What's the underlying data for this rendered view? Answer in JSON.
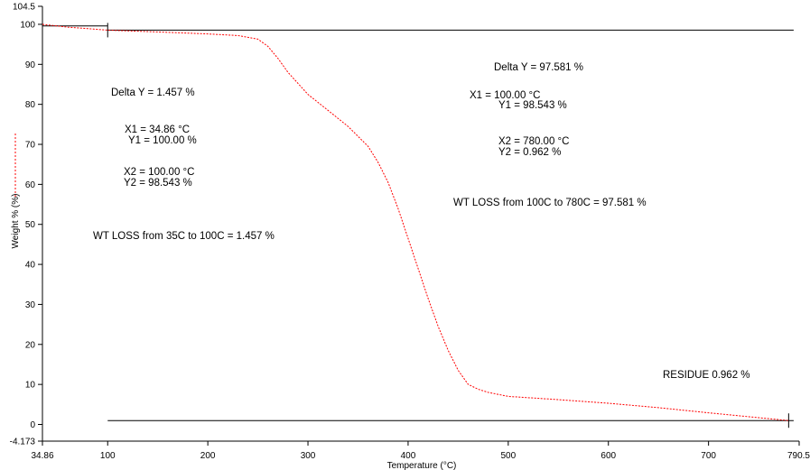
{
  "chart_data": {
    "type": "line",
    "title": "",
    "xlabel": "Temperature (°C)",
    "ylabel": "Weight % (%)",
    "xlim": [
      34.86,
      790.5
    ],
    "ylim": [
      -4.173,
      104.5
    ],
    "x_ticks": [
      "34.86",
      "100",
      "200",
      "300",
      "400",
      "500",
      "600",
      "700",
      "790.5"
    ],
    "y_ticks": [
      "104.5",
      "100",
      "90",
      "80",
      "70",
      "60",
      "50",
      "40",
      "30",
      "20",
      "10",
      "0",
      "-4.173"
    ],
    "grid": false,
    "legend": "left",
    "series": [
      {
        "color": "#ff0000",
        "dash": "dashed",
        "x": [
          34.86,
          60,
          100,
          150,
          200,
          230,
          250,
          260,
          270,
          280,
          300,
          320,
          340,
          360,
          370,
          380,
          390,
          400,
          410,
          420,
          430,
          440,
          450,
          460,
          470,
          480,
          500,
          550,
          600,
          650,
          700,
          750,
          780
        ],
        "y": [
          100.0,
          99.3,
          98.543,
          98.1,
          97.6,
          97.2,
          96.3,
          94.5,
          91.5,
          88.0,
          82.5,
          78.5,
          74.5,
          69.5,
          65.5,
          60.5,
          54.0,
          46.5,
          39.0,
          31.5,
          24.5,
          18.5,
          13.5,
          10.0,
          8.8,
          8.0,
          7.0,
          6.2,
          5.3,
          4.2,
          2.9,
          1.7,
          0.962
        ]
      }
    ],
    "reference_lines": [
      {
        "x_from": 34.86,
        "x_to": 100,
        "y": 99.6
      },
      {
        "x_from": 100,
        "x_to": 785,
        "y": 98.543
      },
      {
        "x_from": 100,
        "x_to": 785,
        "y": 0.962
      }
    ],
    "markers": [
      {
        "x": 100,
        "y": 98.543
      },
      {
        "x": 780,
        "y": 0.962
      }
    ],
    "annotations": {
      "left": {
        "delta_y": "Delta Y = 1.457 %",
        "x1": "X1 = 34.86 °C",
        "y1": "Y1 = 100.00 %",
        "x2": "X2 = 100.00 °C",
        "y2": "Y2 = 98.543 %",
        "wt_loss": "WT LOSS from 35C to 100C = 1.457 %"
      },
      "right": {
        "delta_y": "Delta Y = 97.581 %",
        "x1": "X1 = 100.00 °C",
        "y1": "Y1 = 98.543 %",
        "x2": "X2 = 780.00 °C",
        "y2": "Y2 = 0.962 %",
        "wt_loss": "WT LOSS from 100C to 780C = 97.581 %"
      },
      "residue": "RESIDUE 0.962 %"
    }
  }
}
